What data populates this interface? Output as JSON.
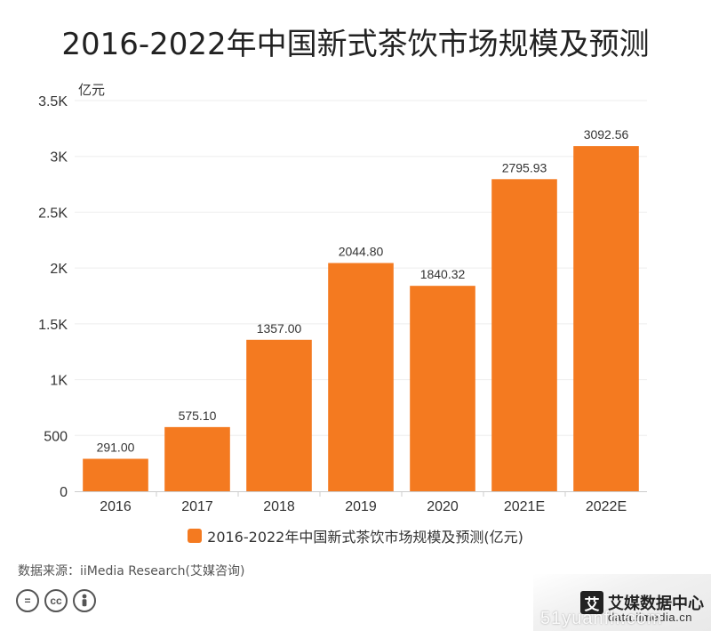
{
  "chart_data": {
    "type": "bar",
    "title": "2016-2022年中国新式茶饮市场规模及预测",
    "ylabel": "亿元",
    "xlabel": "",
    "categories": [
      "2016",
      "2017",
      "2018",
      "2019",
      "2020",
      "2021E",
      "2022E"
    ],
    "series": [
      {
        "name": "2016-2022年中国新式茶饮市场规模及预测(亿元)",
        "values": [
          291.0,
          575.1,
          1357.0,
          2044.8,
          1840.32,
          2795.93,
          3092.56
        ],
        "labels": [
          "291.00",
          "575.10",
          "1357.00",
          "2044.80",
          "1840.32",
          "2795.93",
          "3092.56"
        ]
      }
    ],
    "ylim": [
      0,
      3500
    ],
    "yticks": [
      0,
      500,
      1000,
      1500,
      2000,
      2500,
      3000,
      3500
    ],
    "ytick_labels": [
      "0",
      "500",
      "1K",
      "1.5K",
      "2K",
      "2.5K",
      "3K",
      "3.5K"
    ],
    "grid": true,
    "legend_position": "bottom",
    "bar_color": "#F47A20"
  },
  "footer": {
    "source": "数据来源：iiMedia Research(艾媒咨询)",
    "license_icons": [
      "cc-equal-icon",
      "cc-icon",
      "cc-person-icon"
    ]
  },
  "brand": {
    "logo_glyph": "艾",
    "name": "艾媒数据中心",
    "domain": "data.iimedia.cn",
    "watermark": "51yuanfh.com"
  }
}
